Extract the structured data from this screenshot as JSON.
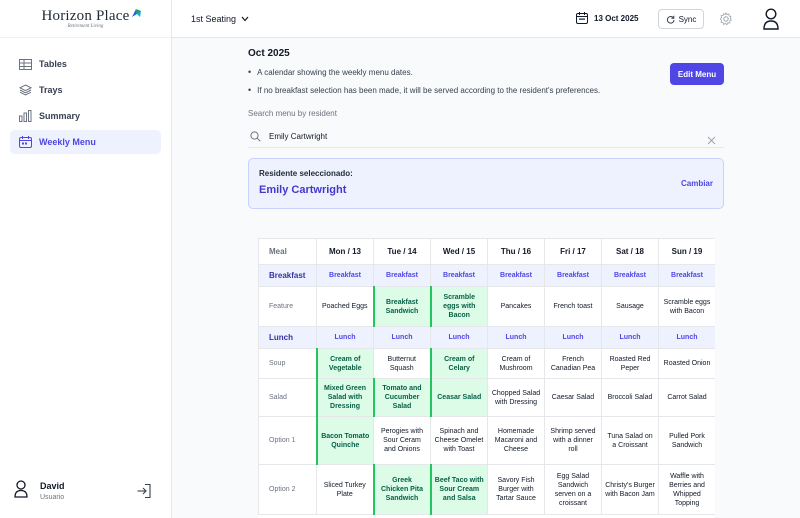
{
  "brand": {
    "name": "Horizon Place",
    "tagline": "Retirement Living"
  },
  "sidebar": {
    "items": [
      {
        "label": "Tables",
        "icon": "table-icon"
      },
      {
        "label": "Trays",
        "icon": "layers-icon"
      },
      {
        "label": "Summary",
        "icon": "bar-chart-icon"
      },
      {
        "label": "Weekly Menu",
        "icon": "calendar-icon",
        "active": true
      }
    ],
    "user": {
      "name": "David",
      "role": "Usuario"
    }
  },
  "header": {
    "seating": "1st Seating",
    "date": "13 Oct 2025",
    "sync_label": "Sync"
  },
  "page": {
    "month": "Oct 2025",
    "bullets": [
      "A calendar showing the weekly menu dates.",
      "If no breakfast selection has been made, it will be served according to the resident's preferences."
    ],
    "edit_label": "Edit Menu",
    "search_label": "Search menu by resident",
    "search_value": "Emily Cartwright",
    "selected_label": "Residente seleccionado:",
    "selected_name": "Emily Cartwright",
    "change_label": "Cambiar"
  },
  "menu": {
    "meal_header": "Meal",
    "days": [
      "Mon / 13",
      "Tue / 14",
      "Wed / 15",
      "Thu / 16",
      "Fri / 17",
      "Sat / 18",
      "Sun / 19"
    ],
    "sections": [
      {
        "name": "Breakfast",
        "tag": "Breakfast",
        "rows": [
          {
            "label": "Feature",
            "cells": [
              "Poached Eggs",
              "Breakfast Sandwich",
              "Scramble eggs with Bacon",
              "Pancakes",
              "French toast",
              "Sausage",
              "Scramble eggs with Bacon"
            ],
            "selected": [
              1,
              2
            ]
          }
        ]
      },
      {
        "name": "Lunch",
        "tag": "Lunch",
        "rows": [
          {
            "label": "Soup",
            "cells": [
              "Cream of Vegetable",
              "Butternut Squash",
              "Cream of Celary",
              "Cream of Mushroom",
              "French Canadian Pea",
              "Roasted Red Peper",
              "Roasted Onion"
            ],
            "selected": [
              0,
              2
            ]
          },
          {
            "label": "Salad",
            "cells": [
              "Mixed Green Salad with Dressing",
              "Tomato and Cucumber Salad",
              "Ceasar Salad",
              "Chopped Salad with Dressing",
              "Caesar Salad",
              "Broccoli Salad",
              "Carrot Salad"
            ],
            "selected": [
              0,
              1,
              2
            ]
          },
          {
            "label": "Option 1",
            "cells": [
              "Bacon Tomato Quinche",
              "Perogies with Sour Ceram and Onions",
              "Spinach and Cheese Omelet with Toast",
              "Homemade Macaroni and Cheese",
              "Shrimp served with a dinner roll",
              "Tuna Salad on a Croissant",
              "Pulled Pork Sandwich"
            ],
            "selected": [
              0
            ]
          },
          {
            "label": "Option 2",
            "cells": [
              "Sliced Turkey Plate",
              "Greek Chicken Pita Sandwich",
              "Beef Taco with Sour Cream and Salsa",
              "Savory Fish Burger with Tartar Sauce",
              "Egg Salad Sandwich serven on a croissant",
              "Christy's Burger with Bacon Jam",
              "Waffle with Berries and Whipped Topping"
            ],
            "selected": [
              1,
              2
            ]
          }
        ]
      }
    ]
  },
  "colors": {
    "accent": "#4f46e5",
    "selected_bg": "#dcfce7",
    "selected_border": "#22c55e"
  }
}
